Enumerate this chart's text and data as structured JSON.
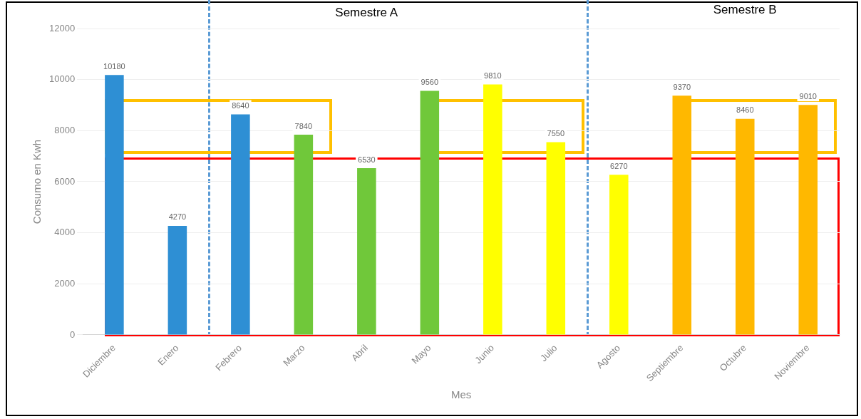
{
  "chart_data": {
    "type": "bar",
    "categories": [
      "Diciembre",
      "Enero",
      "Febrero",
      "Marzo",
      "Abril",
      "Mayo",
      "Junio",
      "Julio",
      "Agosto",
      "Septiembre",
      "Octubre",
      "Noviembre"
    ],
    "values": [
      10180,
      4270,
      8640,
      7840,
      6530,
      9560,
      9810,
      7550,
      6270,
      9370,
      8460,
      9010
    ],
    "colors": [
      "#2e8fd4",
      "#2e8fd4",
      "#2e8fd4",
      "#70c83a",
      "#70c83a",
      "#70c83a",
      "#ffff00",
      "#ffff00",
      "#ffff00",
      "#ffb800",
      "#ffb800",
      "#ffb800"
    ],
    "xlabel": "Mes",
    "ylabel": "Consumo en Kwh",
    "ylim": [
      0,
      12000
    ],
    "yticks": [
      0,
      2000,
      4000,
      6000,
      8000,
      10000,
      12000
    ],
    "data_labels": true,
    "grid": "y",
    "annotations": [
      "Semestre A",
      "Semestre B"
    ]
  }
}
